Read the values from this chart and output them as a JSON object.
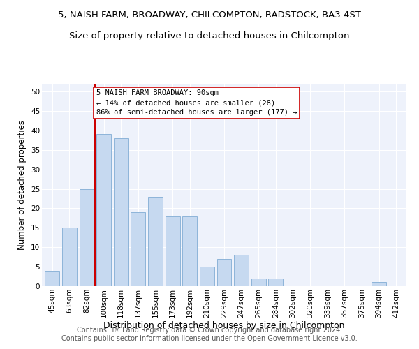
{
  "title_line1": "5, NAISH FARM, BROADWAY, CHILCOMPTON, RADSTOCK, BA3 4ST",
  "title_line2": "Size of property relative to detached houses in Chilcompton",
  "xlabel": "Distribution of detached houses by size in Chilcompton",
  "ylabel": "Number of detached properties",
  "categories": [
    "45sqm",
    "63sqm",
    "82sqm",
    "100sqm",
    "118sqm",
    "137sqm",
    "155sqm",
    "173sqm",
    "192sqm",
    "210sqm",
    "229sqm",
    "247sqm",
    "265sqm",
    "284sqm",
    "302sqm",
    "320sqm",
    "339sqm",
    "357sqm",
    "375sqm",
    "394sqm",
    "412sqm"
  ],
  "values": [
    4,
    15,
    25,
    39,
    38,
    19,
    23,
    18,
    18,
    5,
    7,
    8,
    2,
    2,
    0,
    0,
    0,
    0,
    0,
    1,
    0
  ],
  "bar_color": "#c6d9f0",
  "bar_edge_color": "#8db4d9",
  "vline_color": "#cc0000",
  "vline_x_index": 2,
  "annotation_text": "5 NAISH FARM BROADWAY: 90sqm\n← 14% of detached houses are smaller (28)\n86% of semi-detached houses are larger (177) →",
  "annotation_box_color": "white",
  "annotation_box_edge": "#cc0000",
  "ylim": [
    0,
    52
  ],
  "yticks": [
    0,
    5,
    10,
    15,
    20,
    25,
    30,
    35,
    40,
    45,
    50
  ],
  "background_color": "#eef2fb",
  "footer_text": "Contains HM Land Registry data © Crown copyright and database right 2024.\nContains public sector information licensed under the Open Government Licence v3.0.",
  "title_fontsize": 9.5,
  "subtitle_fontsize": 9.5,
  "xlabel_fontsize": 9,
  "ylabel_fontsize": 8.5,
  "tick_fontsize": 7.5,
  "annot_fontsize": 7.5,
  "footer_fontsize": 7
}
